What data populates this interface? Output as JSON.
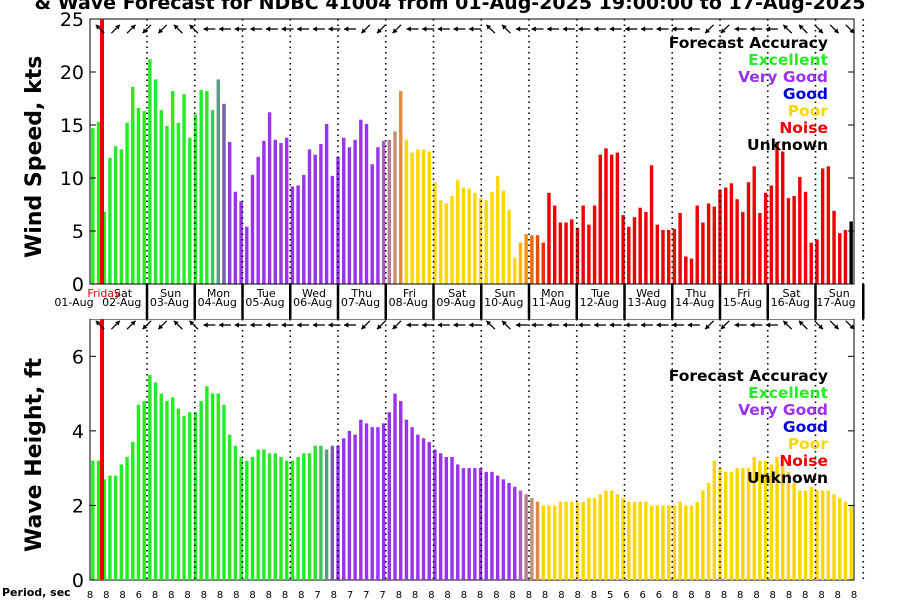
{
  "chart_data": [
    {
      "type": "bar",
      "title": "& Wave Forecast for NDBC 41004 from 01-Aug-2025 19:00:00 to 17-Aug-2025",
      "ylabel": "Wind Speed, kts",
      "ylim": [
        0,
        25
      ],
      "yticks": [
        "0",
        "5",
        "10",
        "15",
        "20",
        "25"
      ],
      "grid": false,
      "legend_position": "top-right",
      "legend_title": "Forecast Accuracy",
      "legend": [
        {
          "label": "Excellent",
          "color": "#22ee22"
        },
        {
          "label": "Very Good",
          "color": "#9933ee"
        },
        {
          "label": "Good",
          "color": "#0000dd"
        },
        {
          "label": "Poor",
          "color": "#ffd700"
        },
        {
          "label": "Noise",
          "color": "#ee0000"
        },
        {
          "label": "Unknown",
          "color": "#000000"
        }
      ],
      "now_marker_label": "Friday",
      "day_labels": [
        "Sat",
        "Sun",
        "Mon",
        "Tue",
        "Wed",
        "Thu",
        "Fri",
        "Sat",
        "Sun",
        "Mon",
        "Tue",
        "Wed",
        "Thu",
        "Fri",
        "Sat",
        "Sun"
      ],
      "date_labels": [
        "01-Aug",
        "02-Aug",
        "03-Aug",
        "04-Aug",
        "05-Aug",
        "06-Aug",
        "07-Aug",
        "08-Aug",
        "09-Aug",
        "10-Aug",
        "11-Aug",
        "12-Aug",
        "13-Aug",
        "14-Aug",
        "15-Aug",
        "16-Aug",
        "17-Aug"
      ],
      "values": [
        14.7,
        15.3,
        6.8,
        11.9,
        13.0,
        12.7,
        15.2,
        18.6,
        16.6,
        16.3,
        21.2,
        19.3,
        16.4,
        14.9,
        18.2,
        15.2,
        17.9,
        13.8,
        16.0,
        18.3,
        18.2,
        16.4,
        19.3,
        17.0,
        13.4,
        8.7,
        7.8,
        5.4,
        10.3,
        12.0,
        13.5,
        16.2,
        13.6,
        13.3,
        13.8,
        9.2,
        9.3,
        10.3,
        12.7,
        12.2,
        13.2,
        15.1,
        10.2,
        12.0,
        13.8,
        12.9,
        13.6,
        15.5,
        15.1,
        11.3,
        12.9,
        13.5,
        13.6,
        14.4,
        18.2,
        13.6,
        12.4,
        12.7,
        12.7,
        12.5,
        9.6,
        7.9,
        7.6,
        8.3,
        9.8,
        9.1,
        9.0,
        8.6,
        8.1,
        7.9,
        8.7,
        10.2,
        8.8,
        7.0,
        2.5,
        3.9,
        4.7,
        4.6,
        4.6,
        3.9,
        8.6,
        7.4,
        5.8,
        5.8,
        6.1,
        5.3,
        7.4,
        5.6,
        7.4,
        12.2,
        12.8,
        12.2,
        12.4,
        6.5,
        5.4,
        6.3,
        7.2,
        6.8,
        11.2,
        5.6,
        5.1,
        5.1,
        5.2,
        6.7,
        2.6,
        2.4,
        7.4,
        5.8,
        7.6,
        7.3,
        8.9,
        9.1,
        9.5,
        8.0,
        6.8,
        9.6,
        11.1,
        6.7,
        8.6,
        9.3,
        13.4,
        12.5,
        8.1,
        8.3,
        10.1,
        8.7,
        3.9,
        4.2,
        10.9,
        11.1,
        6.9,
        4.8,
        5.1,
        5.9
      ],
      "value_colors": [
        "#22ee22",
        "#22ee22",
        "#22ee22",
        "#22ee22",
        "#22ee22",
        "#22ee22",
        "#22ee22",
        "#22ee22",
        "#22ee22",
        "#22ee22",
        "#22ee22",
        "#22ee22",
        "#22ee22",
        "#22ee22",
        "#22ee22",
        "#22ee22",
        "#22ee22",
        "#22ee22",
        "#22ee22",
        "#22ee22",
        "#22ee22",
        "#3fc55f",
        "#5c9a87",
        "#7460a6",
        "#9933ee",
        "#9933ee",
        "#9933ee",
        "#9933ee",
        "#9933ee",
        "#9933ee",
        "#9933ee",
        "#9933ee",
        "#9933ee",
        "#9933ee",
        "#9933ee",
        "#9933ee",
        "#9933ee",
        "#9933ee",
        "#9933ee",
        "#9933ee",
        "#9933ee",
        "#9933ee",
        "#9933ee",
        "#9933ee",
        "#9933ee",
        "#9933ee",
        "#9933ee",
        "#9933ee",
        "#9933ee",
        "#9933ee",
        "#9933ee",
        "#a55dc8",
        "#b77e92",
        "#c68f73",
        "#df8c3e",
        "#ffd700",
        "#ffd700",
        "#ffd700",
        "#ffd700",
        "#ffd700",
        "#ffd700",
        "#ffd700",
        "#ffd700",
        "#ffd700",
        "#ffd700",
        "#ffd700",
        "#ffd700",
        "#ffd700",
        "#ffd700",
        "#ffd700",
        "#ffd700",
        "#ffd700",
        "#ffd700",
        "#ffd700",
        "#ffd700",
        "#ffb800",
        "#f49100",
        "#ee6a00",
        "#ee4a00",
        "#ee2e00",
        "#ee0000",
        "#ee0000",
        "#ee0000",
        "#ee0000",
        "#ee0000",
        "#ee0000",
        "#ee0000",
        "#ee0000",
        "#ee0000",
        "#ee0000",
        "#ee0000",
        "#ee0000",
        "#ee0000",
        "#ee0000",
        "#ee0000",
        "#ee0000",
        "#ee0000",
        "#ee0000",
        "#ee0000",
        "#ee0000",
        "#ee0000",
        "#ee0000",
        "#ee0000",
        "#ee0000",
        "#ee0000",
        "#ee0000",
        "#ee0000",
        "#ee0000",
        "#ee0000",
        "#ee0000",
        "#ee0000",
        "#ee0000",
        "#ee0000",
        "#ee0000",
        "#ee0000",
        "#ee0000",
        "#ee0000",
        "#ee0000",
        "#ee0000",
        "#ee0000",
        "#ee0000",
        "#ee0000",
        "#ee0000",
        "#ee0000",
        "#ee0000",
        "#ee0000",
        "#ee0000",
        "#ee0000",
        "#ee0000",
        "#ee0000",
        "#ee0000",
        "#ee0000",
        "#ee0000"
      ]
    },
    {
      "type": "bar",
      "ylabel": "Wave Height, ft",
      "ylim": [
        0,
        7
      ],
      "yticks": [
        "0",
        "2",
        "4",
        "6"
      ],
      "grid": false,
      "legend_position": "top-right",
      "legend_title": "Forecast Accuracy",
      "legend": [
        {
          "label": "Excellent",
          "color": "#22ee22"
        },
        {
          "label": "Very Good",
          "color": "#9933ee"
        },
        {
          "label": "Good",
          "color": "#0000dd"
        },
        {
          "label": "Poor",
          "color": "#ffd700"
        },
        {
          "label": "Noise",
          "color": "#ee0000"
        },
        {
          "label": "Unknown",
          "color": "#000000"
        }
      ],
      "values": [
        3.2,
        3.2,
        2.7,
        2.8,
        2.8,
        3.1,
        3.3,
        3.7,
        4.7,
        4.8,
        5.5,
        5.3,
        5.0,
        4.8,
        4.9,
        4.6,
        4.4,
        4.5,
        4.5,
        4.8,
        5.2,
        5.0,
        5.0,
        4.7,
        3.9,
        3.6,
        3.3,
        3.2,
        3.3,
        3.5,
        3.5,
        3.4,
        3.4,
        3.3,
        3.2,
        3.2,
        3.3,
        3.4,
        3.4,
        3.6,
        3.6,
        3.5,
        3.6,
        3.6,
        3.8,
        4.0,
        3.9,
        4.3,
        4.2,
        4.1,
        4.1,
        4.2,
        4.5,
        5.0,
        4.8,
        4.3,
        4.1,
        3.9,
        3.8,
        3.7,
        3.5,
        3.4,
        3.3,
        3.3,
        3.1,
        3.0,
        3.0,
        3.0,
        3.0,
        2.9,
        2.9,
        2.8,
        2.7,
        2.6,
        2.5,
        2.4,
        2.3,
        2.2,
        2.1,
        2.0,
        2.0,
        2.0,
        2.1,
        2.1,
        2.1,
        2.1,
        2.1,
        2.2,
        2.2,
        2.3,
        2.4,
        2.4,
        2.3,
        2.2,
        2.1,
        2.1,
        2.1,
        2.1,
        2.0,
        2.0,
        2.0,
        2.0,
        2.0,
        2.1,
        2.0,
        2.0,
        2.1,
        2.4,
        2.6,
        3.2,
        3.0,
        2.9,
        2.9,
        3.0,
        3.0,
        3.0,
        3.3,
        3.2,
        3.2,
        3.1,
        3.3,
        3.2,
        2.9,
        2.6,
        2.4,
        2.4,
        2.5,
        2.4,
        2.4,
        2.4,
        2.3,
        2.2,
        2.1,
        2.0
      ],
      "value_colors": [
        "#22ee22",
        "#22ee22",
        "#22ee22",
        "#22ee22",
        "#22ee22",
        "#22ee22",
        "#22ee22",
        "#22ee22",
        "#22ee22",
        "#22ee22",
        "#22ee22",
        "#22ee22",
        "#22ee22",
        "#22ee22",
        "#22ee22",
        "#22ee22",
        "#22ee22",
        "#22ee22",
        "#22ee22",
        "#22ee22",
        "#22ee22",
        "#22ee22",
        "#22ee22",
        "#22ee22",
        "#22ee22",
        "#22ee22",
        "#22ee22",
        "#22ee22",
        "#22ee22",
        "#22ee22",
        "#22ee22",
        "#22ee22",
        "#22ee22",
        "#22ee22",
        "#22ee22",
        "#22ee22",
        "#22ee22",
        "#22ee22",
        "#22ee22",
        "#22ee22",
        "#3fc55f",
        "#5c9a87",
        "#7460a6",
        "#9933ee",
        "#9933ee",
        "#9933ee",
        "#9933ee",
        "#9933ee",
        "#9933ee",
        "#9933ee",
        "#9933ee",
        "#9933ee",
        "#9933ee",
        "#9933ee",
        "#9933ee",
        "#9933ee",
        "#9933ee",
        "#9933ee",
        "#9933ee",
        "#9933ee",
        "#9933ee",
        "#9933ee",
        "#9933ee",
        "#9933ee",
        "#9933ee",
        "#9933ee",
        "#9933ee",
        "#9933ee",
        "#9933ee",
        "#9933ee",
        "#9933ee",
        "#9933ee",
        "#9933ee",
        "#9933ee",
        "#9933ee",
        "#a55dc8",
        "#b77e92",
        "#c68f73",
        "#df8c3e",
        "#ffd700",
        "#ffd700",
        "#ffd700",
        "#ffd700",
        "#ffd700",
        "#ffd700",
        "#ffd700",
        "#ffd700",
        "#ffd700",
        "#ffd700",
        "#ffd700",
        "#ffd700",
        "#ffd700",
        "#ffd700",
        "#ffd700",
        "#ffd700",
        "#ffd700",
        "#ffd700",
        "#ffd700",
        "#ffd700",
        "#ffd700",
        "#ffd700",
        "#ffd700",
        "#ffd700",
        "#ffd700",
        "#ffd700",
        "#ffd700",
        "#ffd700",
        "#ffd700",
        "#ffd700",
        "#ffd700",
        "#ffd700",
        "#ffd700",
        "#ffd700",
        "#ffd700",
        "#ffd700",
        "#ffd700",
        "#ffd700",
        "#ffd700",
        "#ffd700",
        "#ffd700",
        "#ffd700",
        "#ffd700",
        "#ffd700",
        "#ffd700",
        "#ffd700",
        "#ffd700",
        "#ffd700",
        "#ffd700",
        "#ffd700",
        "#ffd700",
        "#ffd700",
        "#ffd700",
        "#ffd700",
        "#ffd700",
        "#ffd700"
      ],
      "period_label": "Period, sec",
      "period_values": [
        "8",
        "8",
        "8",
        "6",
        "8",
        "8",
        "8",
        "8",
        "8",
        "8",
        "8",
        "8",
        "8",
        "8",
        "7",
        "8",
        "7",
        "7",
        "7",
        "8",
        "8",
        "8",
        "8",
        "8",
        "8",
        "8",
        "8",
        "8",
        "8",
        "8",
        "8",
        "8",
        "5",
        "6",
        "6",
        "6",
        "8",
        "8",
        "8",
        "8",
        "8",
        "8",
        "8",
        "8",
        "8",
        "8",
        "8",
        "8"
      ]
    }
  ],
  "wind_direction_arrows": [
    "nw",
    "ne",
    "ne",
    "sw",
    "sw",
    "nw",
    "nw",
    "w",
    "w",
    "w",
    "w",
    "w",
    "w",
    "w",
    "w",
    "w",
    "w",
    "sw",
    "sw",
    "sw",
    "w",
    "w",
    "w",
    "w",
    "w",
    "nw",
    "nw",
    "w",
    "w",
    "w",
    "w",
    "w",
    "w",
    "w",
    "w",
    "w",
    "w",
    "w",
    "w",
    "sw",
    "sw",
    "w",
    "w",
    "w",
    "nw",
    "nw",
    "se",
    "se",
    "se"
  ]
}
